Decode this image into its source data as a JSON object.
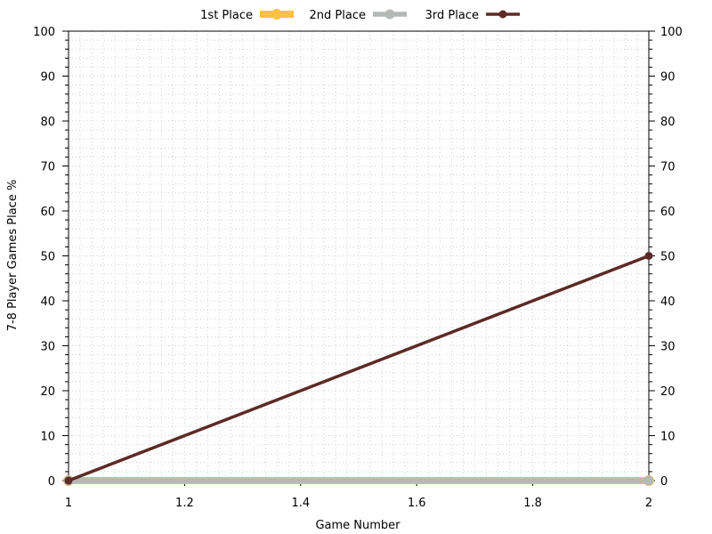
{
  "chart_data": {
    "type": "line",
    "xlabel": "Game Number",
    "ylabel": "7-8 Player Games Place %",
    "xlim": [
      1,
      2
    ],
    "ylim": [
      0,
      100
    ],
    "x_ticks": [
      "1",
      "1.2",
      "1.4",
      "1.6",
      "1.8",
      "2"
    ],
    "y_ticks": [
      "0",
      "10",
      "20",
      "30",
      "40",
      "50",
      "60",
      "70",
      "80",
      "90",
      "100"
    ],
    "grid": true,
    "right_axis_mirror": true,
    "legend_position": "top-center",
    "x": [
      1,
      2
    ],
    "series": [
      {
        "name": "1st Place",
        "color": "#fcc13e",
        "values": [
          0,
          0
        ]
      },
      {
        "name": "2nd Place",
        "color": "#b3b9b5",
        "values": [
          0,
          0
        ]
      },
      {
        "name": "3rd Place",
        "color": "#5d2a26",
        "values": [
          0,
          50
        ]
      }
    ]
  }
}
